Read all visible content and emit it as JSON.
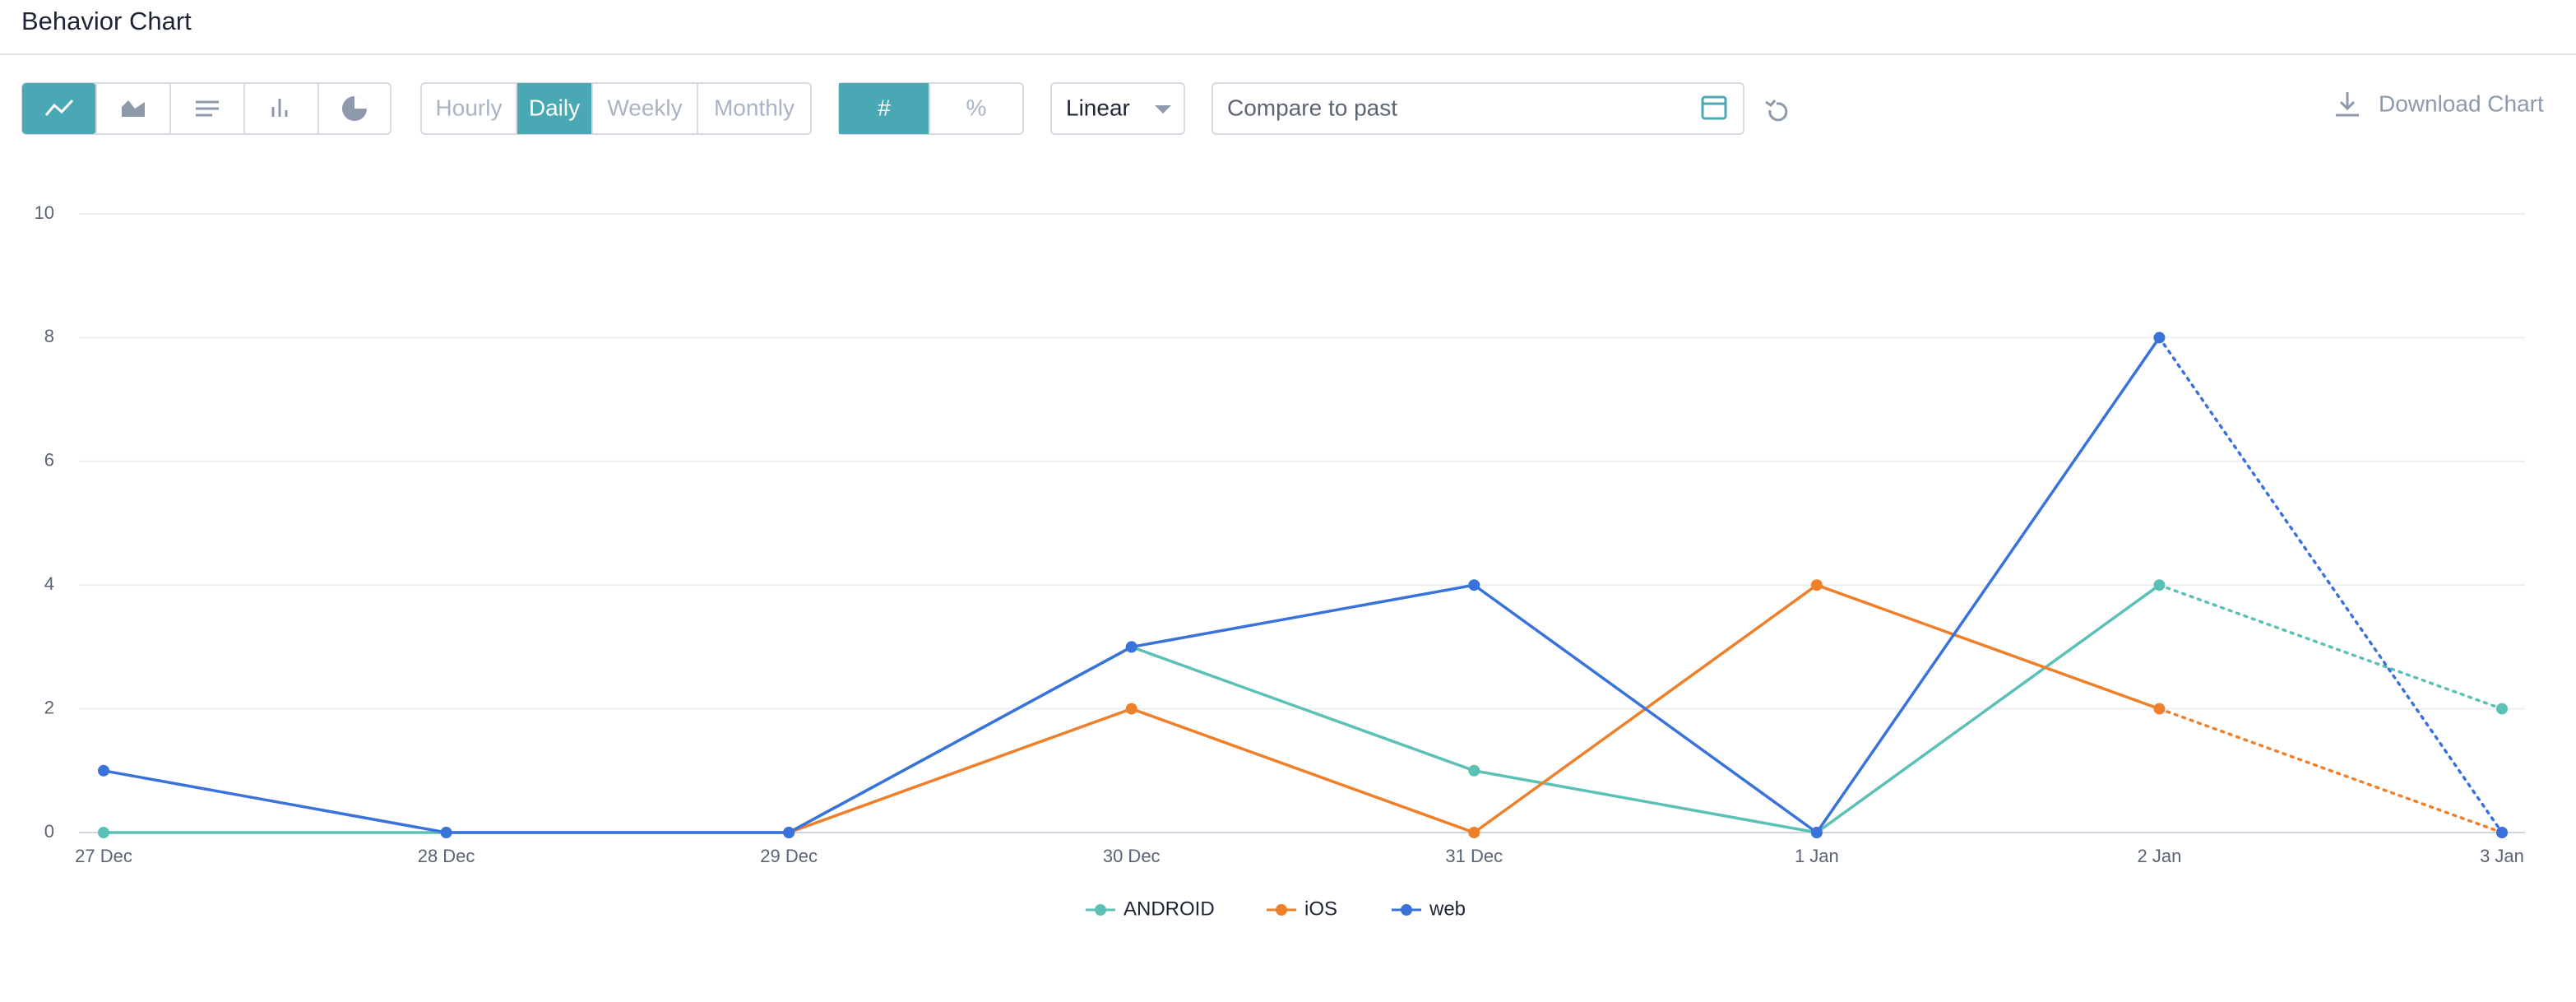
{
  "header": {
    "title": "Behavior Chart"
  },
  "toolbar": {
    "granularity": {
      "options": [
        "Hourly",
        "Daily",
        "Weekly",
        "Monthly"
      ],
      "active": 1
    },
    "measure": {
      "options": [
        "#",
        "%"
      ],
      "active": 0
    },
    "scale": "Linear",
    "compare_placeholder": "Compare to past",
    "download": "Download Chart"
  },
  "chart_data": {
    "type": "line",
    "categories": [
      "27 Dec",
      "28 Dec",
      "29 Dec",
      "30 Dec",
      "31 Dec",
      "1 Jan",
      "2 Jan",
      "3 Jan"
    ],
    "series": [
      {
        "name": "ANDROID",
        "color": "#5bc0b5",
        "values": [
          0,
          0,
          0,
          3,
          1,
          0,
          4,
          2
        ]
      },
      {
        "name": "iOS",
        "color": "#f07f2a",
        "values": [
          null,
          null,
          0,
          2,
          0,
          4,
          2,
          0
        ]
      },
      {
        "name": "web",
        "color": "#3a72dc",
        "values": [
          1,
          0,
          0,
          3,
          4,
          0,
          8,
          0
        ]
      }
    ],
    "ylim": [
      0,
      10
    ],
    "yticks": [
      0,
      2,
      4,
      6,
      8,
      10
    ],
    "grid": true,
    "last_period_dotted": true,
    "legend": "bottom"
  }
}
